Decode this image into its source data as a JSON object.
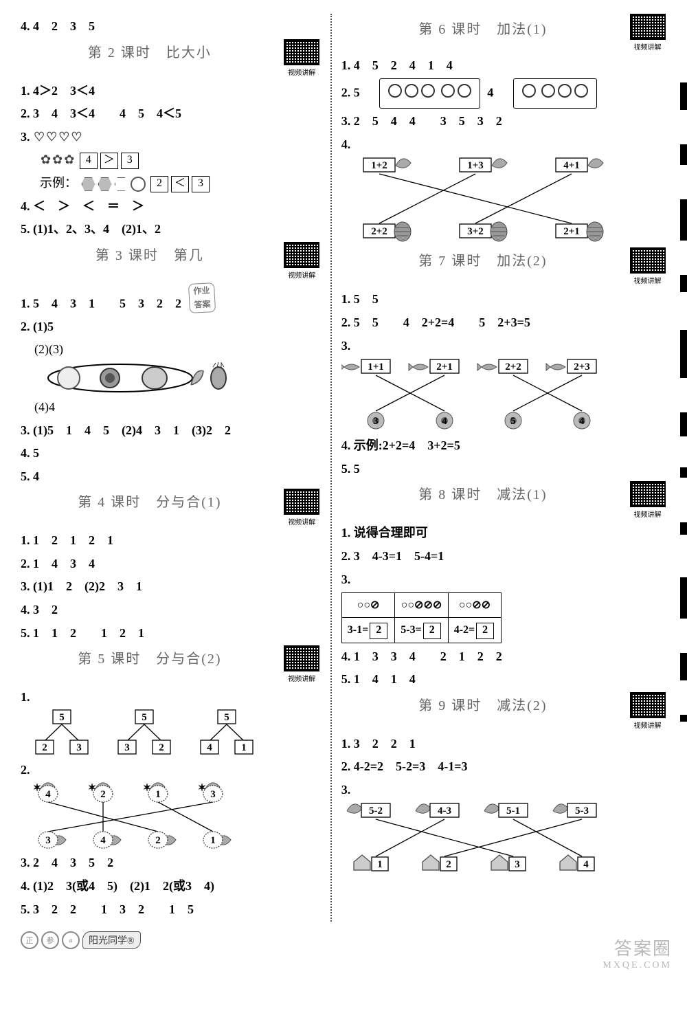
{
  "qr_caption": "视频讲解",
  "left": {
    "top": "4. 4　2　3　5",
    "s2": {
      "title": "第 2 课时　比大小",
      "l1": "1. 4＞2　3＜4",
      "l2": "2. 3　4　3＜4　　4　5　4＜5",
      "l3": "3.",
      "l3_box1": "4",
      "l3_cmp1": "＞",
      "l3_box2": "3",
      "l3_prefix": "示例：",
      "l3_box3": "2",
      "l3_cmp2": "＜",
      "l3_box4": "3",
      "l4": "4. ＜　＞　＜　＝　＞",
      "l5": "5. (1)1、2、3、4　(2)1、2"
    },
    "s3": {
      "title": "第 3 课时　第几",
      "l1": "1. 5　4　3　1　　5　3　2　2",
      "l2": "2. (1)5",
      "l2b": "(2)(3)",
      "l2c": "(4)4",
      "l3": "3. (1)5　1　4　5　(2)4　3　1　(3)2　2",
      "l4": "4. 5",
      "l5": "5. 4",
      "tag": "作业",
      "tag2": "答案"
    },
    "s4": {
      "title": "第 4 课时　分与合(1)",
      "l1": "1. 1　2　1　2　1",
      "l2": "2. 1　4　3　4",
      "l3": "3. (1)1　2　(2)2　3　1",
      "l4": "4. 3　2",
      "l5": "5. 1　1　2　　1　2　1"
    },
    "s5": {
      "title": "第 5 课时　分与合(2)",
      "l1": "1.",
      "tree_top": "5",
      "tree": [
        [
          "2",
          "3"
        ],
        [
          "3",
          "2"
        ],
        [
          "4",
          "1"
        ]
      ],
      "l2": "2.",
      "l2_tops": [
        "4",
        "2",
        "1",
        "3"
      ],
      "l2_bots": [
        "3",
        "4",
        "2",
        "1"
      ],
      "l3": "3. 2　4　3　5　2",
      "l4": "4. (1)2　3(或4　5)　(2)1　2(或3　4)",
      "l5": "5. 3　2　2　　1　3　2　　1　5"
    }
  },
  "right": {
    "s6": {
      "title": "第 6 课时　加法(1)",
      "l1": "1. 4　5　2　4　1　4",
      "l2": "2. 5",
      "l2b": "4",
      "l3": "3. 2　5　4　4　　3　5　3　2",
      "l4": "4.",
      "l4_tops": [
        "1+2",
        "1+3",
        "4+1"
      ],
      "l4_bots": [
        "2+2",
        "3+2",
        "2+1"
      ],
      "l4_icons": [
        "leaf",
        "leaf",
        "leaf",
        "pine",
        "pine",
        "pine"
      ]
    },
    "s7": {
      "title": "第 7 课时　加法(2)",
      "l1": "1. 5　5",
      "l2": "2. 5　5　　4　2+2=4　　5　2+3=5",
      "l3": "3.",
      "l3_tops": [
        "1+1",
        "2+1",
        "2+2",
        "2+3"
      ],
      "l3_bots": [
        "3",
        "4",
        "5",
        "4"
      ],
      "l4": "4. 示例:2+2=4　3+2=5",
      "l5": "5. 5"
    },
    "s8": {
      "title": "第 8 课时　减法(1)",
      "l1": "1. 说得合理即可",
      "l2": "2. 3　4-3=1　5-4=1",
      "l3": "3.",
      "t": {
        "r1c1": "○○⊘",
        "r1c2": "○○⊘⊘⊘",
        "r1c3": "○○⊘⊘",
        "r2c1a": "3-1=",
        "r2c1b": "2",
        "r2c2a": "5-3=",
        "r2c2b": "2",
        "r2c3a": "4-2=",
        "r2c3b": "2"
      },
      "l4": "4. 1　3　3　4　　2　1　2　2",
      "l5": "5. 1　4　1　4"
    },
    "s9": {
      "title": "第 9 课时　减法(2)",
      "l1": "1. 3　2　2　1",
      "l2": "2. 4-2=2　5-2=3　4-1=3",
      "l3": "3.",
      "l3_tops": [
        "5-2",
        "4-3",
        "5-1",
        "5-3"
      ],
      "l3_bots": [
        "1",
        "2",
        "3",
        "4"
      ]
    }
  },
  "footer": {
    "stamps": [
      "正",
      "参",
      "a"
    ],
    "logo": "阳光同学®"
  },
  "wm": {
    "a": "答案圈",
    "b": "MXQE.COM"
  }
}
